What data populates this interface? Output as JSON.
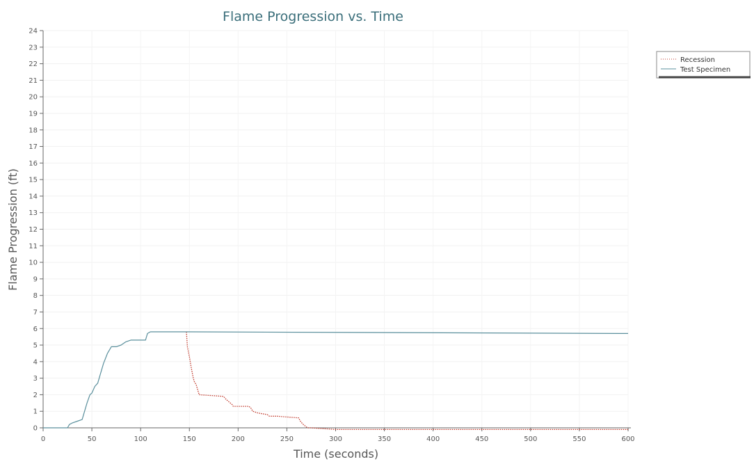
{
  "chart_data": {
    "type": "line",
    "title": "Flame Progression vs. Time",
    "xlabel": "Time (seconds)",
    "ylabel": "Flame Progression (ft)",
    "xlim": [
      0,
      600
    ],
    "ylim": [
      0,
      24
    ],
    "xticks": [
      0,
      50,
      100,
      150,
      200,
      250,
      300,
      350,
      400,
      450,
      500,
      550,
      600
    ],
    "yticks": [
      0,
      1,
      2,
      3,
      4,
      5,
      6,
      7,
      8,
      9,
      10,
      11,
      12,
      13,
      14,
      15,
      16,
      17,
      18,
      19,
      20,
      21,
      22,
      23,
      24
    ],
    "grid": true,
    "legend_position": "top-right",
    "series": [
      {
        "name": "Recession",
        "color": "#c0392b",
        "style": "dotted",
        "x": [
          147,
          148,
          150,
          152,
          154,
          155,
          157,
          160,
          185,
          188,
          190,
          192,
          194,
          195,
          200,
          211,
          212,
          213,
          214,
          215,
          220,
          230,
          231,
          232,
          233,
          235,
          240,
          262,
          264,
          266,
          268,
          270,
          272,
          275,
          300,
          600
        ],
        "y": [
          5.8,
          4.9,
          4.3,
          3.6,
          3.0,
          2.8,
          2.6,
          2.0,
          1.9,
          1.7,
          1.6,
          1.5,
          1.4,
          1.3,
          1.3,
          1.3,
          1.25,
          1.2,
          1.1,
          1.0,
          0.9,
          0.8,
          0.75,
          0.7,
          0.7,
          0.7,
          0.7,
          0.6,
          0.4,
          0.25,
          0.15,
          0.05,
          0.0,
          0.0,
          -0.1,
          -0.1
        ]
      },
      {
        "name": "Test Specimen",
        "color": "#5a8f9c",
        "style": "solid",
        "x": [
          0,
          25,
          27,
          30,
          35,
          40,
          45,
          48,
          50,
          53,
          56,
          58,
          60,
          62,
          64,
          66,
          68,
          70,
          75,
          80,
          85,
          90,
          100,
          105,
          107,
          110,
          150,
          600
        ],
        "y": [
          0,
          0,
          0.2,
          0.3,
          0.4,
          0.5,
          1.5,
          2.0,
          2.1,
          2.5,
          2.7,
          3.1,
          3.5,
          3.9,
          4.2,
          4.5,
          4.7,
          4.9,
          4.9,
          5.0,
          5.2,
          5.3,
          5.3,
          5.3,
          5.7,
          5.8,
          5.8,
          5.7
        ]
      }
    ]
  }
}
